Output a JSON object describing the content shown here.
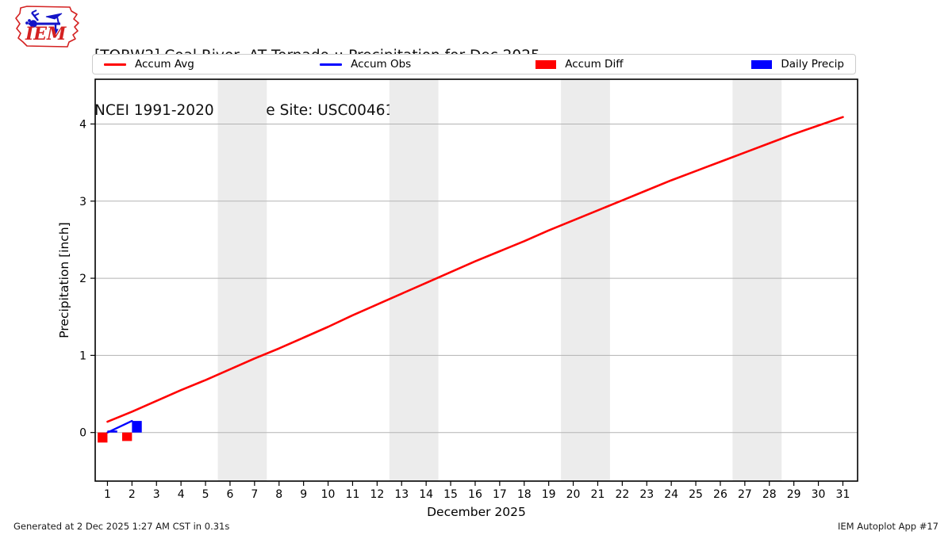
{
  "header": {
    "title_line1": "[TORW2] Coal River  AT Tornado :: Precipitation for Dec 2025",
    "title_line2": "NCEI 1991-2020 Climate Site: USC00461579",
    "logo_text": "IEM"
  },
  "legend": {
    "items": [
      {
        "label": "Accum Avg",
        "type": "line",
        "color": "#ff0000"
      },
      {
        "label": "Accum Obs",
        "type": "line",
        "color": "#0000ff"
      },
      {
        "label": "Accum Diff",
        "type": "patch",
        "color": "#ff0000"
      },
      {
        "label": "Daily Precip",
        "type": "patch",
        "color": "#0000ff"
      }
    ]
  },
  "footer": {
    "left": "Generated at 2 Dec 2025 1:27 AM CST in 0.31s",
    "right": "IEM Autoplot App #17"
  },
  "chart_data": {
    "type": "line",
    "title": "[TORW2] Coal River  AT Tornado :: Precipitation for Dec 2025",
    "subtitle": "NCEI 1991-2020 Climate Site: USC00461579",
    "xlabel": "December 2025",
    "ylabel": "Precipitation [inch]",
    "xlim": [
      0.5,
      31.6
    ],
    "ylim": [
      -0.63,
      4.58
    ],
    "xticks": [
      1,
      2,
      3,
      4,
      5,
      6,
      7,
      8,
      9,
      10,
      11,
      12,
      13,
      14,
      15,
      16,
      17,
      18,
      19,
      20,
      21,
      22,
      23,
      24,
      25,
      26,
      27,
      28,
      29,
      30,
      31
    ],
    "yticks": [
      0,
      1,
      2,
      3,
      4
    ],
    "grid": true,
    "legend_position": "top",
    "weekend_bands": [
      [
        5.5,
        7.5
      ],
      [
        12.5,
        14.5
      ],
      [
        19.5,
        21.5
      ],
      [
        26.5,
        28.5
      ]
    ],
    "colors": {
      "band": "#ececec",
      "grid": "#b3b3b3",
      "frame": "#000000",
      "tick": "#000000",
      "accum_avg": "#ff0000",
      "accum_obs": "#0000ff",
      "accum_diff": "#ff0000",
      "daily_precip": "#0000ff"
    },
    "series": [
      {
        "name": "Accum Avg",
        "render": "line",
        "color": "#ff0000",
        "width": 2.6,
        "x": [
          1,
          2,
          3,
          4,
          5,
          6,
          7,
          8,
          9,
          10,
          11,
          12,
          13,
          14,
          15,
          16,
          17,
          18,
          19,
          20,
          21,
          22,
          23,
          24,
          25,
          26,
          27,
          28,
          29,
          30,
          31
        ],
        "y": [
          0.14,
          0.27,
          0.41,
          0.55,
          0.68,
          0.82,
          0.96,
          1.09,
          1.23,
          1.37,
          1.52,
          1.66,
          1.8,
          1.94,
          2.08,
          2.22,
          2.35,
          2.48,
          2.62,
          2.75,
          2.88,
          3.01,
          3.14,
          3.27,
          3.39,
          3.51,
          3.63,
          3.75,
          3.87,
          3.98,
          4.09
        ]
      },
      {
        "name": "Accum Obs",
        "render": "line",
        "color": "#0000ff",
        "width": 2.4,
        "x": [
          1,
          2
        ],
        "y": [
          0.0,
          0.15
        ]
      },
      {
        "name": "Accum Diff",
        "render": "bar",
        "color": "#ff0000",
        "offset": -0.2,
        "barwidth": 0.4,
        "x": [
          1,
          2
        ],
        "y": [
          -0.13,
          -0.11
        ]
      },
      {
        "name": "Daily Precip",
        "render": "bar",
        "color": "#0000ff",
        "offset": 0.2,
        "barwidth": 0.4,
        "x": [
          1,
          2
        ],
        "y": [
          0.0,
          0.15
        ]
      }
    ]
  }
}
